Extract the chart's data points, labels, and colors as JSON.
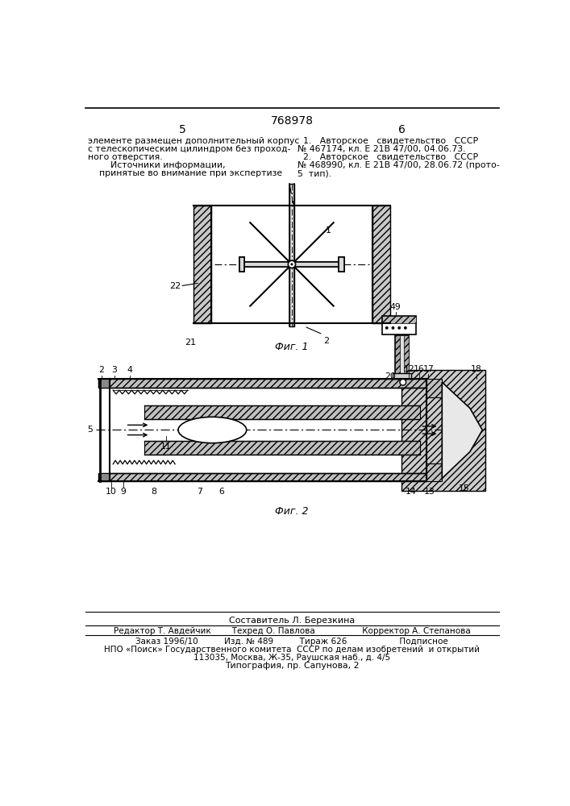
{
  "patent_number": "768978",
  "page_left": "5",
  "page_right": "6",
  "text_left_lines": [
    "элементе размещен дополнительный корпус",
    "с телескопическим цилиндром без проход-",
    "ного отверстия.",
    "        Источники информации,",
    "    принятые во внимание при экспертизе"
  ],
  "text_right_lines": [
    "  1.   Авторское   свидетельство   СССР",
    "№ 467174, кл. Е 21В 47/00, 04.06.73.",
    "  2.   Авторское   свидетельство   СССР",
    "№ 468990, кл. Е 21В 47/00, 28.06.72 (прото-",
    "5  тип)."
  ],
  "fig1_caption": "Фиг. 1",
  "fig2_caption": "Фиг. 2",
  "footer_lines": [
    "Составитель Л. Березкина",
    "Редактор Т. Авдейчик        Техред О. Павлова                  Корректор А. Степанова",
    "Заказ 1996/10          Изд. № 489          Тираж 626                    Подписное",
    "НПО «Поиск» Государственного комитета  СССР по делам изобретений  и открытий",
    "113035, Москва, Ж-35, Раушская наб., д. 4/5",
    "Типография, пр. Сапунова, 2"
  ],
  "bg_color": "#ffffff",
  "text_color": "#000000",
  "line_color": "#000000"
}
